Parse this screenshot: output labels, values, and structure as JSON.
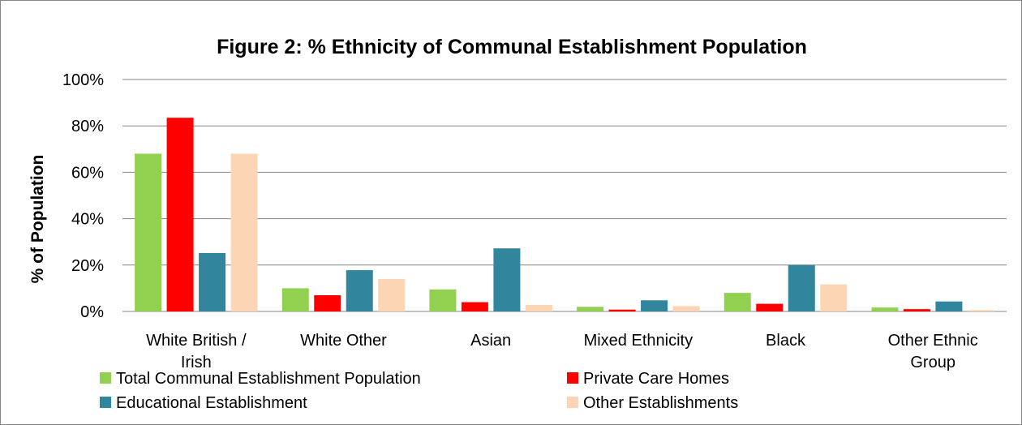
{
  "chart_data": {
    "type": "bar",
    "title": "Figure 2: % Ethnicity of Communal Establishment Population",
    "ylabel": "% of Population",
    "xlabel": "",
    "ylim": [
      0,
      100
    ],
    "y_ticks": [
      "0%",
      "20%",
      "40%",
      "60%",
      "80%",
      "100%"
    ],
    "grid": true,
    "legend_position": "bottom",
    "categories": [
      [
        "White British /",
        "Irish"
      ],
      [
        "White Other"
      ],
      [
        "Asian"
      ],
      [
        "Mixed Ethnicity"
      ],
      [
        "Black"
      ],
      [
        "Other Ethnic",
        "Group"
      ]
    ],
    "series": [
      {
        "name": "Total Communal Establishment Population",
        "color": "#92d050",
        "values": [
          68,
          10,
          9.5,
          2,
          8,
          1.7
        ]
      },
      {
        "name": "Private Care Homes",
        "color": "#ff0000",
        "values": [
          83.5,
          7,
          4,
          0.8,
          3.3,
          1
        ]
      },
      {
        "name": "Educational Establishment",
        "color": "#31859c",
        "values": [
          25.2,
          17.8,
          27.2,
          4.8,
          20,
          4.3
        ]
      },
      {
        "name": "Other Establishments",
        "color": "#fcd5b5",
        "values": [
          68,
          14,
          2.8,
          2.3,
          11.7,
          0.6
        ]
      }
    ]
  }
}
